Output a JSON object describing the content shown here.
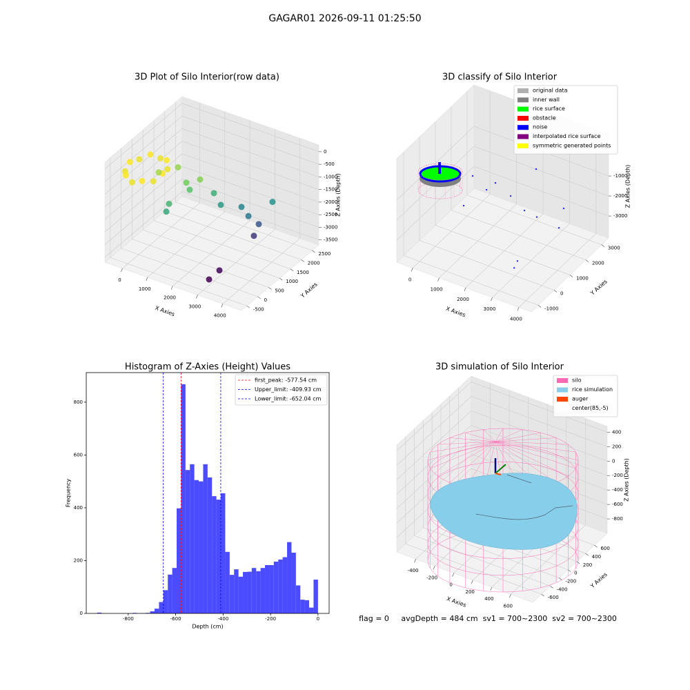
{
  "title": "GAGAR01 2026-09-11 01:25:50",
  "footer": "flag = 0     avgDepth = 484 cm  sv1 = 700~2300  sv2 = 700~2300",
  "chart_data": [
    {
      "type": "scatter3d",
      "title": "3D Plot of Silo Interior(row data)",
      "xlabel": "X Axies",
      "ylabel": "Y Axies",
      "zlabel": "Z Axies (Depth)",
      "xlim": [
        -700,
        4750
      ],
      "ylim": [
        -750,
        2800
      ],
      "zlim": [
        -3700,
        270
      ],
      "xticks": [
        0,
        1000,
        2000,
        3000,
        4000
      ],
      "yticks": [
        -500,
        0,
        500,
        1000,
        1500,
        2000,
        2500
      ],
      "zticks": [
        0,
        -500,
        -1000,
        -1500,
        -2000,
        -2500,
        -3000,
        -3500
      ],
      "colormap": "viridis",
      "marker_size": 4.5,
      "points": {
        "x": [
          950,
          863,
          625,
          300,
          -25,
          -263,
          -350,
          -263,
          -25,
          300,
          625,
          863,
          1660,
          1295,
          1175,
          717,
          1460,
          2003,
          2335,
          2734,
          3066,
          3289,
          3290,
          3607,
          1190,
          2973,
          3006,
          427
        ],
        "y": [
          0,
          325,
          563,
          650,
          563,
          325,
          0,
          -325,
          -563,
          -650,
          -563,
          -325,
          905,
          694,
          38,
          976,
          660,
          1146,
          1081,
          1571,
          1508,
          1725,
          1501,
          1991,
          -104,
          -193,
          244,
          425
        ],
        "z": [
          -150,
          -250,
          -150,
          -250,
          -150,
          -250,
          -150,
          -250,
          -150,
          -250,
          -150,
          -250,
          -800,
          -900,
          -1300,
          -700,
          -1100,
          -1400,
          -1700,
          -2000,
          -2200,
          -2600,
          -2900,
          -1800,
          -1500,
          -3500,
          -3450,
          -600
        ]
      }
    },
    {
      "type": "scatter3d",
      "title": "3D classify of Silo Interior",
      "xlabel": "X Axies",
      "ylabel": "Y Axies",
      "zlabel": "Z Axies (Depth)",
      "xlim": [
        -600,
        4470
      ],
      "ylim": [
        -1440,
        3440
      ],
      "zlim": [
        -4100,
        1070
      ],
      "xticks": [
        0,
        1000,
        2000,
        3000,
        4000
      ],
      "yticks": [
        -1000,
        0,
        1000,
        2000,
        3000
      ],
      "zticks": [
        -3000,
        -2000,
        -1000
      ],
      "legend": "upper right",
      "marker_size": 1.2,
      "series": [
        {
          "name": "original data",
          "color": "#b0b0b0"
        },
        {
          "name": "inner wall",
          "color": "#808080"
        },
        {
          "name": "rice surface",
          "color": "#00ff00"
        },
        {
          "name": "obstacle",
          "color": "#ff0000"
        },
        {
          "name": "noise",
          "color": "#0000ff",
          "x": [
            775,
            1590,
            1545,
            2376,
            2305,
            806,
            2594,
            3603,
            3456,
            2817,
            2924,
            2833
          ],
          "y": [
            1049,
            1118,
            634,
            761,
            2493,
            429,
            1268,
            2059,
            2005,
            455,
            68,
            1649
          ],
          "z": [
            -1000,
            -1000,
            -1000,
            -1000,
            -1000,
            -2000,
            -2000,
            -2000,
            -3000,
            -3800,
            -3800,
            -2500
          ]
        },
        {
          "name": "interpolated rice surface",
          "color": "#800080"
        },
        {
          "name": "symmetric generated points",
          "color": "#ffff00"
        }
      ]
    },
    {
      "type": "histogram",
      "title": "Histogram of Z-Axies (Height) Values",
      "xlabel": "Depth (cm)",
      "ylabel": "Frequency",
      "color": "#4b4bff",
      "xlim": [
        -977,
        47
      ],
      "ylim": [
        0,
        912
      ],
      "xticks": [
        -800,
        -600,
        -400,
        -200,
        0
      ],
      "yticks": [
        0,
        200,
        400,
        600,
        800
      ],
      "bins": [
        -931,
        -912.38,
        -893.76,
        -875.14,
        -856.52,
        -837.9,
        -819.28,
        -800.66,
        -782.04,
        -763.42,
        -744.8,
        -726.18,
        -707.56,
        -688.94,
        -670.32,
        -651.7,
        -633.08,
        -614.46,
        -595.84,
        -577.22,
        -558.6,
        -539.98,
        -521.36,
        -502.74,
        -484.12,
        -465.5,
        -446.88,
        -428.26,
        -409.64,
        -391.02,
        -372.4,
        -353.78,
        -335.16,
        -316.54,
        -297.92,
        -279.3,
        -260.68,
        -242.06,
        -223.44,
        -204.82,
        -186.2,
        -167.58,
        -148.96,
        -130.34,
        -111.72,
        -93.1,
        -74.48,
        -55.86,
        -37.24,
        -18.62,
        0
      ],
      "counts": [
        3,
        0,
        0,
        0,
        0,
        0,
        0,
        0,
        2,
        0,
        1,
        2,
        8,
        18,
        43,
        88,
        147,
        172,
        398,
        868,
        543,
        565,
        505,
        500,
        565,
        515,
        444,
        431,
        455,
        233,
        146,
        167,
        139,
        157,
        158,
        172,
        160,
        172,
        183,
        183,
        196,
        204,
        213,
        270,
        230,
        106,
        52,
        50,
        22,
        128
      ],
      "legend": "upper right",
      "vlines": [
        {
          "label": "first_peak: -577.54 cm",
          "value": -577.54,
          "color": "#ff0000"
        },
        {
          "label": "Upper_limit: -409.93 cm",
          "value": -409.93,
          "color": "#0000ff"
        },
        {
          "label": "Lower_limit: -652.04 cm",
          "value": -652.04,
          "color": "#0000ff"
        }
      ]
    },
    {
      "type": "surface3d",
      "title": "3D simulation of Silo Interior",
      "xlabel": "X Axies",
      "ylabel": "Y Axies",
      "zlabel": "Z Axies (Depth)",
      "xlim": [
        -600,
        830
      ],
      "ylim": [
        -800,
        890
      ],
      "zlim": [
        -1000,
        480
      ],
      "xticks": [
        -400,
        -200,
        0,
        200,
        400,
        600
      ],
      "yticks": [
        -600,
        -400,
        -200,
        0,
        200,
        400,
        600
      ],
      "zticks": [
        -800,
        -600,
        -400,
        -200,
        0,
        200,
        400
      ],
      "legend": "upper right",
      "series": [
        {
          "name": "silo",
          "color": "#ff69b4"
        },
        {
          "name": "rice simulation",
          "color": "#87ceeb"
        },
        {
          "name": "auger",
          "color": "#ff4500"
        },
        {
          "name": "center(85,-5)",
          "color": "#ffffff"
        }
      ]
    }
  ]
}
